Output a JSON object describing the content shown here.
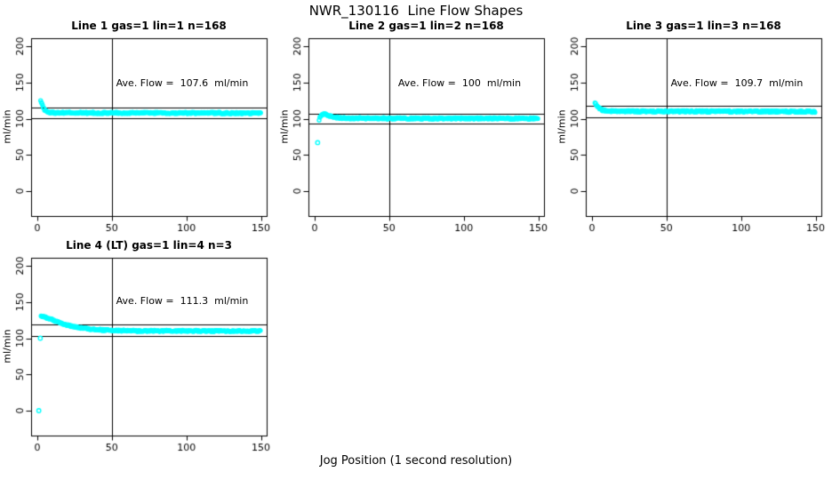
{
  "figure_title": "NWR_130116  Line Flow Shapes",
  "x_axis_label": "Jog Position (1 second resolution)",
  "point_color": "#00FFFF",
  "line_color": "#000000",
  "background_color": "#FFFFFF",
  "chart_data": [
    {
      "type": "scatter",
      "title": "Line 1 gas=1 lin=1 n=168",
      "ave_flow_text": "Ave. Flow =  107.6  ml/min",
      "ave_flow": 107.6,
      "n": 168,
      "ylabel": "ml/min",
      "xticks": [
        0,
        50,
        100,
        150
      ],
      "yticks": [
        0,
        50,
        100,
        150,
        200
      ],
      "xlim": [
        -4,
        154
      ],
      "ylim": [
        -34,
        211
      ],
      "vline_x": 50,
      "hlines": [
        115.1,
        100.1
      ],
      "x_range": [
        2.2,
        150
      ],
      "curve_anchors": [
        [
          2.2,
          126
        ],
        [
          3,
          121
        ],
        [
          4,
          116
        ],
        [
          5,
          112
        ],
        [
          6,
          110
        ],
        [
          8,
          108.8
        ],
        [
          12,
          108.2
        ],
        [
          40,
          108
        ],
        [
          150,
          107.8
        ]
      ],
      "outliers": [],
      "noise": 1.1
    },
    {
      "type": "scatter",
      "title": "Line 2 gas=1 lin=2 n=168",
      "ave_flow_text": "Ave. Flow =  100  ml/min",
      "ave_flow": 100,
      "n": 168,
      "ylabel": "ml/min",
      "xticks": [
        0,
        50,
        100,
        150
      ],
      "yticks": [
        0,
        50,
        100,
        150,
        200
      ],
      "xlim": [
        -4,
        154
      ],
      "ylim": [
        -34,
        211
      ],
      "vline_x": 50,
      "hlines": [
        107,
        93
      ],
      "x_range": [
        3,
        150
      ],
      "curve_anchors": [
        [
          3,
          98.5
        ],
        [
          4,
          103.5
        ],
        [
          5,
          105.8
        ],
        [
          7,
          106
        ],
        [
          9,
          104.5
        ],
        [
          12,
          102.5
        ],
        [
          16,
          101.2
        ],
        [
          25,
          100.6
        ],
        [
          60,
          100.3
        ],
        [
          150,
          100.2
        ]
      ],
      "outliers": [
        [
          2,
          67
        ]
      ],
      "noise": 1.1
    },
    {
      "type": "scatter",
      "title": "Line 3 gas=1 lin=3 n=168",
      "ave_flow_text": "Ave. Flow =  109.7  ml/min",
      "ave_flow": 109.7,
      "n": 168,
      "ylabel": "ml/min",
      "xticks": [
        0,
        50,
        100,
        150
      ],
      "yticks": [
        0,
        50,
        100,
        150,
        200
      ],
      "xlim": [
        -4,
        154
      ],
      "ylim": [
        -34,
        211
      ],
      "vline_x": 50,
      "hlines": [
        117.4,
        102
      ],
      "x_range": [
        2,
        150
      ],
      "curve_anchors": [
        [
          2,
          122
        ],
        [
          3,
          119
        ],
        [
          4,
          116
        ],
        [
          5,
          114
        ],
        [
          7,
          111.8
        ],
        [
          10,
          110.6
        ],
        [
          15,
          110.2
        ],
        [
          60,
          110
        ],
        [
          150,
          109.7
        ]
      ],
      "outliers": [],
      "noise": 1.1
    },
    {
      "type": "scatter",
      "title": "Line 4 (LT) gas=1 lin=4 n=3",
      "ave_flow_text": "Ave. Flow =  111.3  ml/min",
      "ave_flow": 111.3,
      "n": 3,
      "ylabel": "ml/min",
      "xticks": [
        0,
        50,
        100,
        150
      ],
      "yticks": [
        0,
        50,
        100,
        150,
        200
      ],
      "xlim": [
        -4,
        154
      ],
      "ylim": [
        -34,
        211
      ],
      "vline_x": 50,
      "hlines": [
        119.1,
        103.5
      ],
      "x_range": [
        2.5,
        150
      ],
      "curve_anchors": [
        [
          2.5,
          130
        ],
        [
          4,
          129.5
        ],
        [
          6,
          128.5
        ],
        [
          8,
          127
        ],
        [
          10,
          125.5
        ],
        [
          13,
          123
        ],
        [
          16,
          120.8
        ],
        [
          20,
          118.2
        ],
        [
          24,
          116.2
        ],
        [
          28,
          114.6
        ],
        [
          33,
          113.2
        ],
        [
          38,
          112.2
        ],
        [
          45,
          111.2
        ],
        [
          55,
          110.5
        ],
        [
          70,
          110.1
        ],
        [
          150,
          109.9
        ]
      ],
      "outliers": [
        [
          1,
          0
        ],
        [
          2,
          100
        ]
      ],
      "noise": 1.0
    }
  ]
}
